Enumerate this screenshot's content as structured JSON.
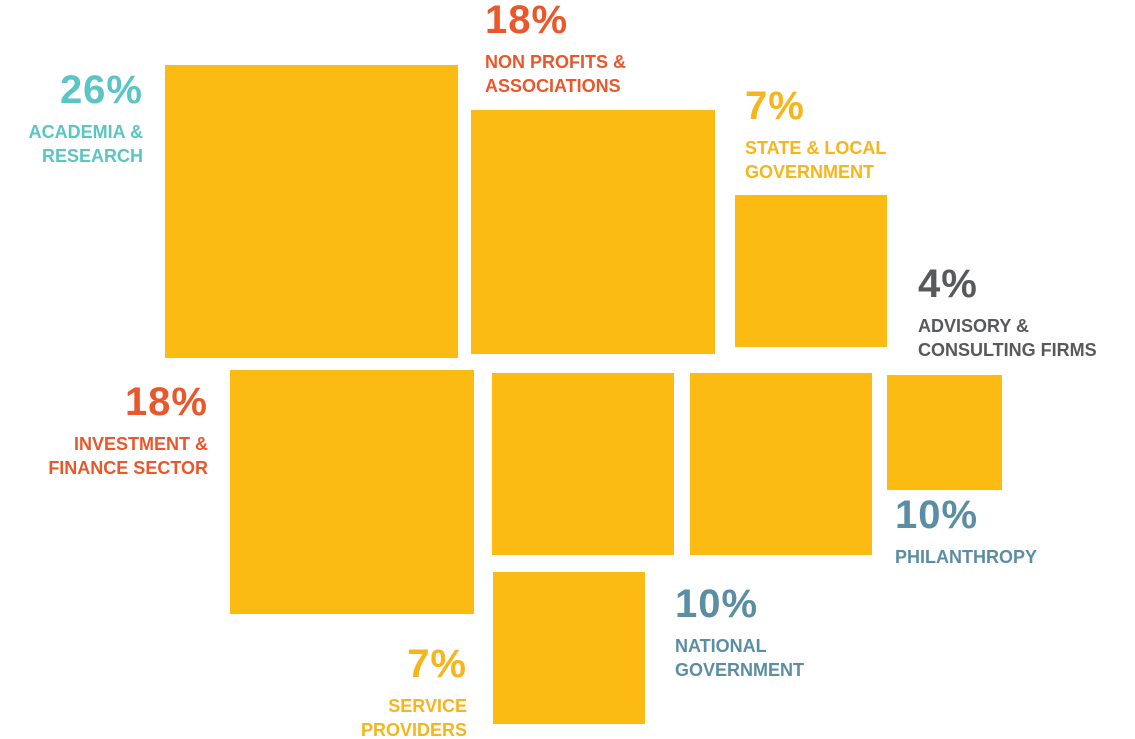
{
  "chart_data": {
    "type": "square",
    "categories": [
      "ACADEMIA & RESEARCH",
      "NON PROFITS & ASSOCIATIONS",
      "STATE & LOCAL GOVERNMENT",
      "ADVISORY & CONSULTING FIRMS",
      "INVESTMENT & FINANCE SECTOR",
      "NATIONAL GOVERNMENT",
      "PHILANTHROPY",
      "SERVICE PROVIDERS"
    ],
    "values": [
      26,
      18,
      7,
      4,
      18,
      10,
      10,
      7
    ],
    "value_labels": [
      "26%",
      "18%",
      "7%",
      "4%",
      "18%",
      "10%",
      "10%",
      "7%"
    ],
    "color": "#fbbb13",
    "label_colors": [
      "#5bc4c4",
      "#e9572b",
      "#f7b51b",
      "#58595b",
      "#e9572b",
      "#5b8da3",
      "#5b8da3",
      "#f7b51b"
    ]
  }
}
